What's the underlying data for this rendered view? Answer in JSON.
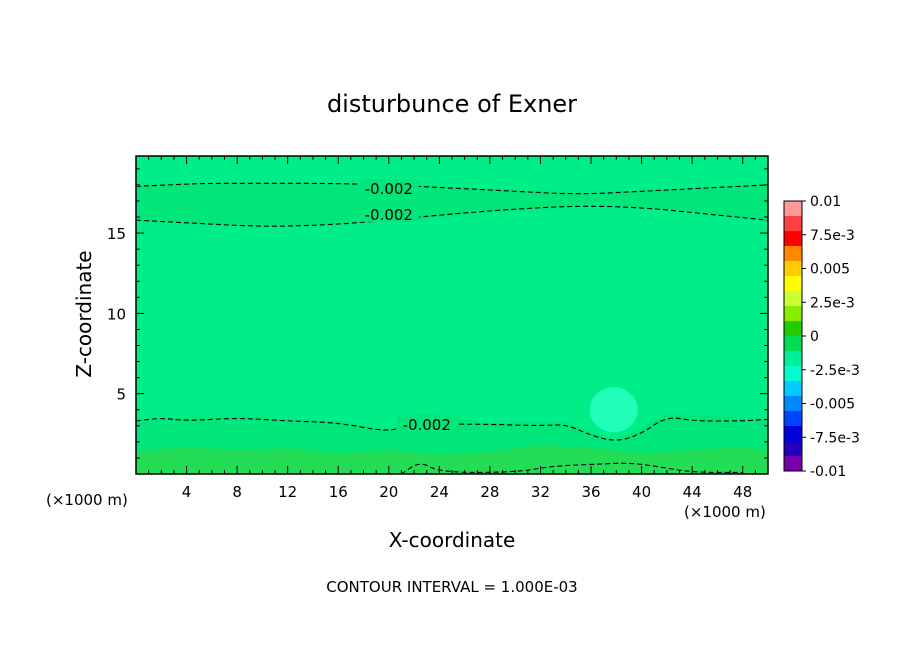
{
  "chart_data": {
    "type": "heatmap",
    "title": "disturbunce of Exner",
    "xlabel": "X-coordinate",
    "ylabel": "Z-coordinate",
    "x_unit_left": "(×1000 m)",
    "x_unit_right": "(×1000 m)",
    "footer": "CONTOUR INTERVAL = 1.000E-03",
    "xlim": [
      0,
      50
    ],
    "ylim": [
      0,
      19.8
    ],
    "x_ticks": [
      4,
      8,
      12,
      16,
      20,
      24,
      28,
      32,
      36,
      40,
      44,
      48
    ],
    "y_ticks": [
      5,
      10,
      15
    ],
    "background_color": "#00ee88",
    "colorbar": {
      "labels": [
        "0.01",
        "7.5e-3",
        "0.005",
        "2.5e-3",
        "0",
        "-2.5e-3",
        "-0.005",
        "-7.5e-3",
        "-0.01"
      ],
      "label_values": [
        0.01,
        0.0075,
        0.005,
        0.0025,
        0,
        -0.0025,
        -0.005,
        -0.0075,
        -0.01
      ],
      "min": -0.01,
      "max": 0.01,
      "bands": [
        "#ff9999",
        "#ff4040",
        "#ff0000",
        "#ff8800",
        "#ffcc00",
        "#ffff00",
        "#ccff33",
        "#88ee00",
        "#22cc00",
        "#00dd55",
        "#00ee99",
        "#00ffcc",
        "#00ccff",
        "#0088ff",
        "#0044ff",
        "#0000dd",
        "#2200bb",
        "#7700aa"
      ]
    },
    "contours": [
      {
        "label": "-0.002",
        "value": -0.002,
        "points": [
          [
            0,
            17.9
          ],
          [
            5,
            18.1
          ],
          [
            10,
            18.1
          ],
          [
            15,
            18.1
          ],
          [
            20,
            18.0
          ],
          [
            25,
            17.8
          ],
          [
            30,
            17.6
          ],
          [
            35,
            17.4
          ],
          [
            40,
            17.6
          ],
          [
            45,
            17.8
          ],
          [
            50,
            18.0
          ]
        ]
      },
      {
        "label": "-0.002",
        "value": -0.002,
        "points": [
          [
            0,
            15.8
          ],
          [
            5,
            15.6
          ],
          [
            10,
            15.4
          ],
          [
            15,
            15.5
          ],
          [
            20,
            15.8
          ],
          [
            25,
            16.2
          ],
          [
            30,
            16.5
          ],
          [
            35,
            16.7
          ],
          [
            40,
            16.6
          ],
          [
            45,
            16.2
          ],
          [
            50,
            15.8
          ]
        ]
      },
      {
        "label": "-0.002",
        "value": -0.002,
        "points": [
          [
            0,
            3.3
          ],
          [
            2,
            3.5
          ],
          [
            4,
            3.3
          ],
          [
            8,
            3.5
          ],
          [
            12,
            3.3
          ],
          [
            16,
            3.2
          ],
          [
            20,
            2.6
          ],
          [
            21.5,
            3.1
          ],
          [
            22.5,
            3.7
          ],
          [
            24,
            3.1
          ],
          [
            28,
            3.1
          ],
          [
            32,
            3.0
          ],
          [
            34,
            3.1
          ],
          [
            36,
            2.4
          ],
          [
            38,
            2.0
          ],
          [
            40,
            2.5
          ],
          [
            42,
            3.6
          ],
          [
            44,
            3.3
          ],
          [
            48,
            3.3
          ],
          [
            50,
            3.4
          ]
        ]
      },
      {
        "label": "",
        "value": -0.001,
        "points": [
          [
            21,
            0
          ],
          [
            22.5,
            0.8
          ],
          [
            24,
            0.1
          ],
          [
            30,
            0.1
          ],
          [
            33,
            0.5
          ],
          [
            36,
            0.6
          ],
          [
            39,
            0.7
          ],
          [
            41,
            0.5
          ],
          [
            44,
            0.1
          ],
          [
            48,
            0.1
          ]
        ]
      }
    ],
    "shading": [
      {
        "value": -0.0015,
        "color": "#00e67a",
        "top": [
          [
            0,
            18.0
          ],
          [
            10,
            18.2
          ],
          [
            20,
            18.1
          ],
          [
            30,
            17.7
          ],
          [
            36,
            17.5
          ],
          [
            44,
            17.8
          ],
          [
            50,
            18.1
          ]
        ],
        "bottom": [
          [
            0,
            15.7
          ],
          [
            10,
            15.4
          ],
          [
            20,
            15.7
          ],
          [
            30,
            16.4
          ],
          [
            36,
            16.7
          ],
          [
            44,
            16.3
          ],
          [
            50,
            15.7
          ]
        ]
      },
      {
        "value": -0.0015,
        "color": "#00e67a",
        "top": [
          [
            0,
            3.4
          ],
          [
            8,
            3.6
          ],
          [
            16,
            3.3
          ],
          [
            20,
            2.7
          ],
          [
            22.5,
            3.8
          ],
          [
            28,
            3.2
          ],
          [
            34,
            3.2
          ],
          [
            38,
            2.1
          ],
          [
            42,
            3.7
          ],
          [
            50,
            3.5
          ]
        ],
        "bottom": [
          [
            0,
            0
          ],
          [
            50,
            0
          ]
        ]
      },
      {
        "value": -0.0005,
        "color": "#22dd55",
        "top": [
          [
            0,
            1.4
          ],
          [
            4,
            1.7
          ],
          [
            8,
            1.5
          ],
          [
            12,
            1.6
          ],
          [
            16,
            1.3
          ],
          [
            20,
            1.5
          ],
          [
            24,
            1.2
          ],
          [
            28,
            1.4
          ],
          [
            32,
            1.8
          ],
          [
            36,
            1.6
          ],
          [
            40,
            1.3
          ],
          [
            44,
            1.5
          ],
          [
            48,
            1.7
          ],
          [
            50,
            1.4
          ]
        ],
        "bottom": [
          [
            0,
            0
          ],
          [
            50,
            0
          ]
        ]
      }
    ],
    "anomalies": [
      {
        "x": 37.8,
        "z": 4.0,
        "rx": 1.9,
        "rz": 1.4,
        "value": -0.003,
        "color": "#22ffbb"
      }
    ]
  }
}
